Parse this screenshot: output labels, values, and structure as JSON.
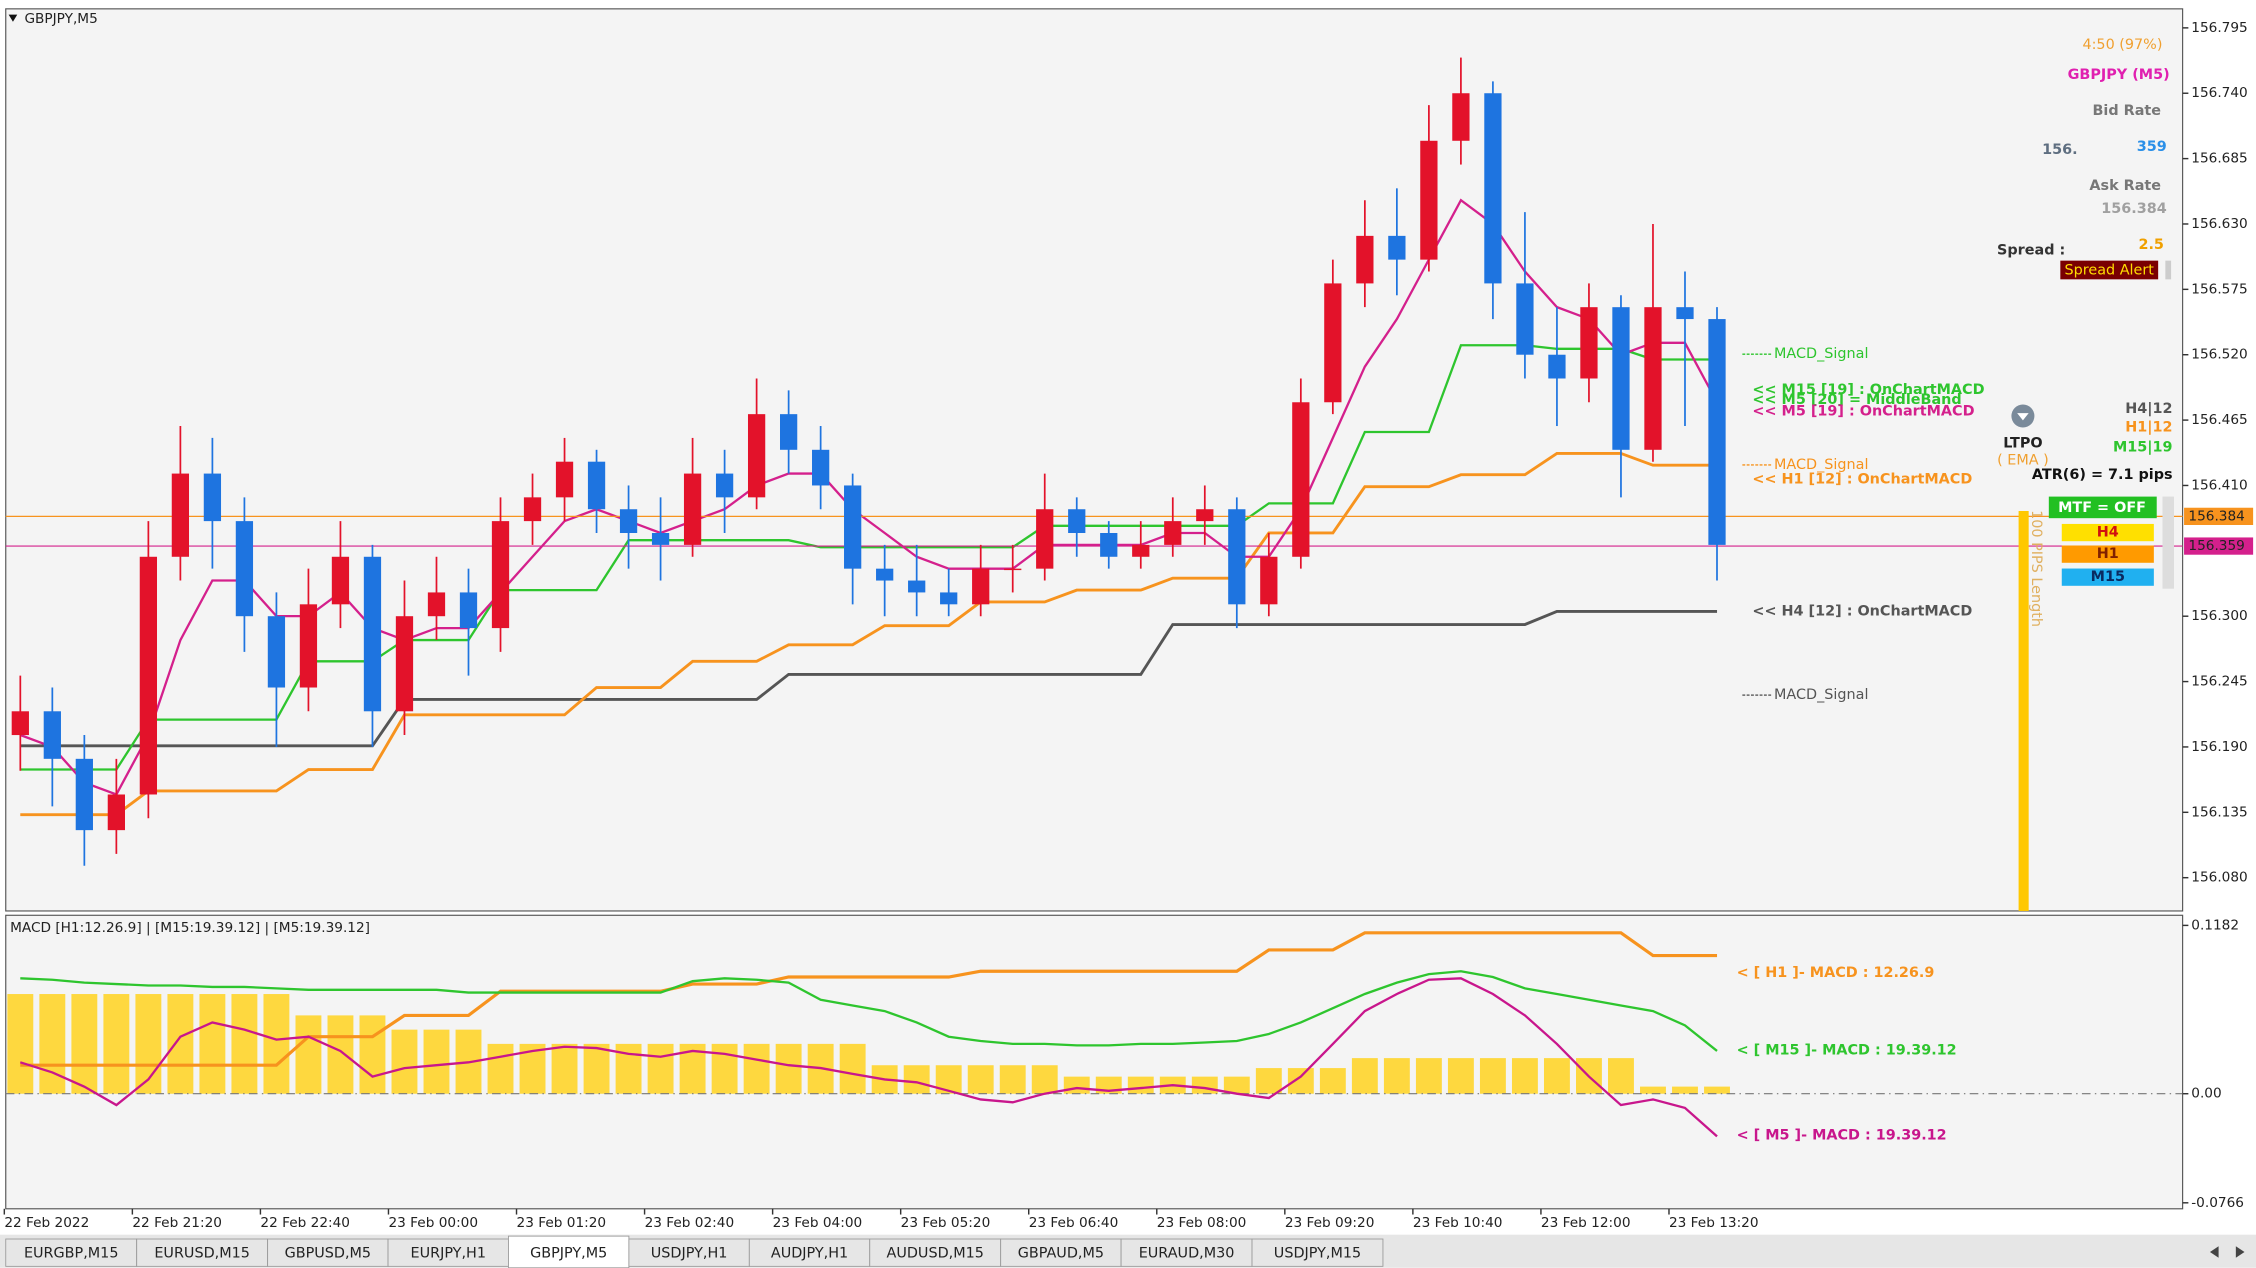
{
  "window_title": "GBPJPY,M5",
  "chart_data": [
    {
      "type": "candlestick",
      "categories": [
        "22 Feb 2022",
        null,
        null,
        null,
        "22 Feb 21:20",
        null,
        null,
        null,
        "22 Feb 22:40",
        null,
        null,
        null,
        "23 Feb 00:00",
        null,
        null,
        null,
        "23 Feb 01:20",
        null,
        null,
        null,
        "23 Feb 02:40",
        null,
        null,
        null,
        "23 Feb 04:00",
        null,
        null,
        null,
        "23 Feb 05:20",
        null,
        null,
        null,
        "23 Feb 06:40",
        null,
        null,
        null,
        "23 Feb 08:00",
        null,
        null,
        null,
        "23 Feb 09:20",
        null,
        null,
        null,
        "23 Feb 10:40",
        null,
        null,
        null,
        "23 Feb 12:00",
        null,
        null,
        null,
        "23 Feb 13:20",
        null
      ],
      "open": [
        156.2,
        156.22,
        156.18,
        156.12,
        156.15,
        156.35,
        156.42,
        156.38,
        156.3,
        156.24,
        156.31,
        156.35,
        156.22,
        156.3,
        156.32,
        156.29,
        156.38,
        156.4,
        156.43,
        156.39,
        156.37,
        156.36,
        156.42,
        156.4,
        156.47,
        156.44,
        156.41,
        156.34,
        156.33,
        156.32,
        156.31,
        156.34,
        156.34,
        156.39,
        156.37,
        156.35,
        156.36,
        156.38,
        156.39,
        156.31,
        156.35,
        156.48,
        156.58,
        156.62,
        156.6,
        156.7,
        156.74,
        156.58,
        156.52,
        156.5,
        156.56,
        156.44,
        156.56,
        156.55
      ],
      "high": [
        156.25,
        156.24,
        156.2,
        156.18,
        156.38,
        156.46,
        156.45,
        156.4,
        156.32,
        156.34,
        156.38,
        156.36,
        156.33,
        156.35,
        156.34,
        156.4,
        156.42,
        156.45,
        156.44,
        156.41,
        156.4,
        156.45,
        156.44,
        156.5,
        156.49,
        156.46,
        156.42,
        156.36,
        156.36,
        156.34,
        156.36,
        156.36,
        156.42,
        156.4,
        156.38,
        156.38,
        156.4,
        156.41,
        156.4,
        156.37,
        156.5,
        156.6,
        156.65,
        156.66,
        156.73,
        156.77,
        156.75,
        156.64,
        156.56,
        156.58,
        156.57,
        156.63,
        156.59,
        156.56
      ],
      "low": [
        156.17,
        156.14,
        156.09,
        156.1,
        156.13,
        156.33,
        156.34,
        156.27,
        156.19,
        156.22,
        156.29,
        156.19,
        156.2,
        156.28,
        156.25,
        156.27,
        156.36,
        156.38,
        156.37,
        156.34,
        156.33,
        156.35,
        156.37,
        156.39,
        156.42,
        156.39,
        156.31,
        156.3,
        156.3,
        156.3,
        156.3,
        156.32,
        156.33,
        156.35,
        156.34,
        156.34,
        156.35,
        156.36,
        156.29,
        156.3,
        156.34,
        156.47,
        156.56,
        156.57,
        156.59,
        156.68,
        156.55,
        156.5,
        156.46,
        156.48,
        156.4,
        156.43,
        156.46,
        156.33
      ],
      "close": [
        156.22,
        156.18,
        156.12,
        156.15,
        156.35,
        156.42,
        156.38,
        156.3,
        156.24,
        156.31,
        156.35,
        156.22,
        156.3,
        156.32,
        156.29,
        156.38,
        156.4,
        156.43,
        156.39,
        156.37,
        156.36,
        156.42,
        156.4,
        156.47,
        156.44,
        156.41,
        156.34,
        156.33,
        156.32,
        156.31,
        156.34,
        156.34,
        156.39,
        156.37,
        156.35,
        156.36,
        156.38,
        156.39,
        156.31,
        156.35,
        156.48,
        156.58,
        156.62,
        156.6,
        156.7,
        156.74,
        156.58,
        156.52,
        156.5,
        156.56,
        156.44,
        156.56,
        156.55,
        156.36
      ],
      "up_color": "#e3122a",
      "down_color": "#1e74e0",
      "series": [
        {
          "name": "<< H4 [12] : OnChartMACD",
          "color": "#555555",
          "values": [
            156.191,
            156.191,
            156.191,
            156.191,
            156.191,
            156.191,
            156.191,
            156.191,
            156.191,
            156.191,
            156.191,
            156.191,
            156.23,
            156.23,
            156.23,
            156.23,
            156.23,
            156.23,
            156.23,
            156.23,
            156.23,
            156.23,
            156.23,
            156.23,
            156.251,
            156.251,
            156.251,
            156.251,
            156.251,
            156.251,
            156.251,
            156.251,
            156.251,
            156.251,
            156.251,
            156.251,
            156.293,
            156.293,
            156.293,
            156.293,
            156.293,
            156.293,
            156.293,
            156.293,
            156.293,
            156.293,
            156.293,
            156.293,
            156.304,
            156.304,
            156.304,
            156.304,
            156.304,
            156.304
          ]
        },
        {
          "name": "<< H1 [12] : OnChartMACD",
          "color": "#f7931e",
          "values": [
            156.133,
            156.133,
            156.133,
            156.133,
            156.153,
            156.153,
            156.153,
            156.153,
            156.153,
            156.171,
            156.171,
            156.171,
            156.217,
            156.217,
            156.217,
            156.217,
            156.217,
            156.217,
            156.24,
            156.24,
            156.24,
            156.262,
            156.262,
            156.262,
            156.276,
            156.276,
            156.276,
            156.292,
            156.292,
            156.292,
            156.312,
            156.312,
            156.312,
            156.322,
            156.322,
            156.322,
            156.332,
            156.332,
            156.332,
            156.37,
            156.37,
            156.37,
            156.409,
            156.409,
            156.409,
            156.419,
            156.419,
            156.419,
            156.437,
            156.437,
            156.437,
            156.427,
            156.427,
            156.427
          ]
        },
        {
          "name": "<< M15 [19] : OnChartMACD",
          "color": "#2ec52e",
          "values": [
            156.171,
            156.171,
            156.171,
            156.171,
            156.213,
            156.213,
            156.213,
            156.213,
            156.213,
            156.262,
            156.262,
            156.262,
            156.28,
            156.28,
            156.28,
            156.322,
            156.322,
            156.322,
            156.322,
            156.364,
            156.364,
            156.364,
            156.364,
            156.364,
            156.364,
            156.358,
            156.358,
            156.358,
            156.358,
            156.358,
            156.358,
            156.358,
            156.376,
            156.376,
            156.376,
            156.376,
            156.376,
            156.376,
            156.376,
            156.395,
            156.395,
            156.395,
            156.455,
            156.455,
            156.455,
            156.528,
            156.528,
            156.528,
            156.525,
            156.525,
            156.525,
            156.516,
            156.516,
            156.516
          ]
        },
        {
          "name": "<< M5 [19] : OnChartMACD",
          "color": "#d4208c",
          "values": [
            156.2,
            156.19,
            156.16,
            156.15,
            156.2,
            156.28,
            156.33,
            156.33,
            156.3,
            156.3,
            156.32,
            156.29,
            156.28,
            156.29,
            156.29,
            156.32,
            156.35,
            156.38,
            156.39,
            156.38,
            156.37,
            156.38,
            156.39,
            156.41,
            156.42,
            156.42,
            156.39,
            156.37,
            156.35,
            156.34,
            156.34,
            156.34,
            156.36,
            156.36,
            156.36,
            156.36,
            156.37,
            156.37,
            156.35,
            156.35,
            156.39,
            156.45,
            156.51,
            156.55,
            156.6,
            156.65,
            156.63,
            156.59,
            156.56,
            156.55,
            156.52,
            156.53,
            156.53,
            156.48
          ]
        }
      ],
      "annotations": [
        "MACD_Signal",
        "MACD_Signal",
        "MACD_Signal",
        "<< M5 [20] = MiddleBand"
      ],
      "ask": 156.384,
      "ask_color": "#f7931e",
      "bid": 156.359,
      "bid_color": "#d4208c",
      "ylim": [
        156.052,
        156.811
      ],
      "yticks": [
        156.795,
        {
          "value": 156.74,
          "label": "156.740"
        },
        156.685,
        {
          "value": 156.63,
          "label": "156.630"
        },
        156.575,
        {
          "value": 156.52,
          "label": "156.520"
        },
        156.465,
        {
          "value": 156.41,
          "label": "156.410"
        },
        {
          "value": 156.3,
          "label": "156.300"
        },
        156.245,
        {
          "value": 156.19,
          "label": "156.190"
        },
        156.135,
        {
          "value": 156.08,
          "label": "156.080"
        }
      ]
    },
    {
      "type": "macd",
      "title": "MACD [H1:12.26.9] | [M15:19.39.12] | [M5:19.39.12]",
      "histogram": [
        0.07,
        0.07,
        0.07,
        0.07,
        0.07,
        0.07,
        0.07,
        0.07,
        0.07,
        0.055,
        0.055,
        0.055,
        0.045,
        0.045,
        0.045,
        0.035,
        0.035,
        0.035,
        0.035,
        0.035,
        0.035,
        0.035,
        0.035,
        0.035,
        0.035,
        0.035,
        0.035,
        0.02,
        0.02,
        0.02,
        0.02,
        0.02,
        0.02,
        0.012,
        0.012,
        0.012,
        0.012,
        0.012,
        0.012,
        0.018,
        0.018,
        0.018,
        0.025,
        0.025,
        0.025,
        0.025,
        0.025,
        0.025,
        0.025,
        0.025,
        0.025,
        0.005,
        0.005,
        0.005
      ],
      "histogram_color": "#ffd21f",
      "series": [
        {
          "name": "< [ H1 ]- MACD : 12.26.9",
          "color": "#f7931e",
          "values": [
            0.02,
            0.02,
            0.02,
            0.02,
            0.02,
            0.02,
            0.02,
            0.02,
            0.02,
            0.04,
            0.04,
            0.04,
            0.055,
            0.055,
            0.055,
            0.072,
            0.072,
            0.072,
            0.072,
            0.072,
            0.072,
            0.077,
            0.077,
            0.077,
            0.082,
            0.082,
            0.082,
            0.082,
            0.082,
            0.082,
            0.086,
            0.086,
            0.086,
            0.086,
            0.086,
            0.086,
            0.086,
            0.086,
            0.086,
            0.101,
            0.101,
            0.101,
            0.113,
            0.113,
            0.113,
            0.113,
            0.113,
            0.113,
            0.113,
            0.113,
            0.113,
            0.097,
            0.097,
            0.097
          ]
        },
        {
          "name": "< [ M15 ]- MACD : 19.39.12",
          "color": "#2ec52e",
          "values": [
            0.081,
            0.08,
            0.078,
            0.077,
            0.076,
            0.076,
            0.075,
            0.075,
            0.074,
            0.073,
            0.073,
            0.073,
            0.073,
            0.073,
            0.071,
            0.071,
            0.071,
            0.071,
            0.071,
            0.071,
            0.071,
            0.079,
            0.081,
            0.08,
            0.078,
            0.066,
            0.062,
            0.058,
            0.05,
            0.04,
            0.037,
            0.035,
            0.035,
            0.034,
            0.034,
            0.035,
            0.035,
            0.036,
            0.037,
            0.042,
            0.05,
            0.06,
            0.07,
            0.078,
            0.084,
            0.086,
            0.082,
            0.074,
            0.07,
            0.066,
            0.062,
            0.058,
            0.048,
            0.03
          ]
        },
        {
          "name": "< [ M5 ]- MACD : 19.39.12",
          "color": "#c8168c",
          "values": [
            0.022,
            0.015,
            0.005,
            -0.008,
            0.01,
            0.04,
            0.05,
            0.045,
            0.038,
            0.04,
            0.03,
            0.012,
            0.018,
            0.02,
            0.022,
            0.026,
            0.03,
            0.033,
            0.032,
            0.028,
            0.026,
            0.03,
            0.028,
            0.024,
            0.02,
            0.018,
            0.014,
            0.01,
            0.008,
            0.002,
            -0.004,
            -0.006,
            0.0,
            0.004,
            0.002,
            0.004,
            0.006,
            0.004,
            0.0,
            -0.003,
            0.012,
            0.035,
            0.058,
            0.07,
            0.08,
            0.081,
            0.07,
            0.055,
            0.035,
            0.012,
            -0.008,
            -0.004,
            -0.01,
            -0.03
          ]
        }
      ],
      "ylim": [
        -0.0808,
        0.1253
      ],
      "yticks": [
        0.1182,
        {
          "value": 0,
          "label": "0.00"
        },
        -0.0766
      ]
    }
  ],
  "info_panel": {
    "timer": "4:50 (97%)",
    "symbol": "GBPJPY (M5)",
    "bid_label": "Bid Rate",
    "bid_whole": "156.",
    "bid_fraction": "359",
    "ask_label": "Ask Rate",
    "ask": "156.384",
    "spread_label": "Spread :",
    "spread": "2.5",
    "spread_alert": "Spread Alert",
    "ltpo": "LTPO",
    "ltpo_mode": "( EMA )",
    "periods": [
      "H4|12",
      "H1|12",
      "M15|19"
    ],
    "atr": "ATR(6) = 7.1 pips",
    "mtf": "MTF = OFF",
    "mtf_rows": [
      "H4",
      "H1",
      "M15"
    ],
    "pips_bar": "100 PIPS Length"
  },
  "tabs": [
    "EURGBP,M15",
    "EURUSD,M15",
    "GBPUSD,M5",
    "EURJPY,H1",
    "GBPJPY,M5",
    "USDJPY,H1",
    "AUDJPY,H1",
    "AUDUSD,M15",
    "GBPAUD,M5",
    "EURAUD,M30",
    "USDJPY,M15"
  ],
  "active_tab": 4
}
